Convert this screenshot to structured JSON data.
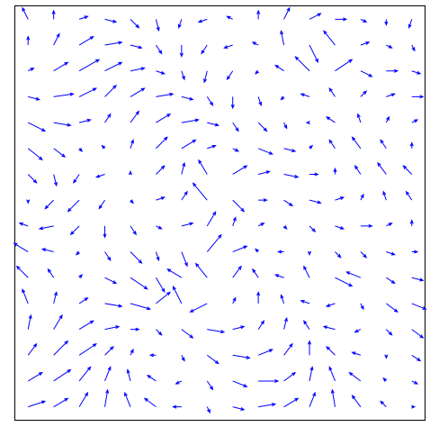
{
  "chart_data": {
    "type": "quiver",
    "color": "#0000ff",
    "x": [
      0,
      1,
      2,
      3,
      4,
      5,
      6,
      7,
      8,
      9,
      10,
      11,
      12,
      13,
      14,
      15
    ],
    "y": [
      0,
      1,
      2,
      3,
      4,
      5,
      6,
      7,
      8,
      9,
      10,
      11,
      12,
      13,
      14,
      15
    ],
    "xlim": [
      -0.5,
      15.5
    ],
    "ylim": [
      -0.5,
      15.5
    ],
    "u": [
      [
        0.6,
        0.5,
        0.3,
        0.1,
        -0.2,
        -0.4,
        -0.3,
        0.1,
        0.4,
        0.6,
        0.5,
        0.2,
        -0.1,
        -0.3,
        -0.2,
        0.1
      ],
      [
        0.5,
        0.6,
        0.4,
        0.2,
        -0.1,
        -0.3,
        -0.2,
        0.2,
        0.5,
        0.7,
        0.4,
        0.1,
        -0.2,
        -0.4,
        -0.1,
        0.2
      ],
      [
        0.3,
        0.5,
        0.6,
        0.3,
        0.1,
        -0.2,
        0.1,
        0.4,
        0.6,
        0.5,
        0.3,
        0.0,
        -0.3,
        -0.3,
        0.0,
        0.3
      ],
      [
        0.1,
        0.3,
        0.5,
        0.5,
        0.3,
        0.2,
        0.4,
        0.6,
        0.4,
        0.2,
        0.1,
        -0.2,
        -0.4,
        -0.2,
        0.2,
        0.4
      ],
      [
        -0.2,
        0.1,
        0.3,
        0.6,
        0.7,
        0.5,
        -0.3,
        -0.6,
        0.1,
        0.0,
        -0.1,
        -0.3,
        -0.3,
        0.1,
        0.4,
        0.5
      ],
      [
        -0.4,
        -0.2,
        0.1,
        0.4,
        0.6,
        0.3,
        -0.5,
        -0.4,
        0.3,
        -0.2,
        -0.3,
        -0.2,
        0.6,
        -0.5,
        0.3,
        0.4
      ],
      [
        -0.5,
        -0.4,
        -0.1,
        0.2,
        0.4,
        0.1,
        0.2,
        0.5,
        0.5,
        -0.1,
        -0.2,
        0.0,
        0.2,
        0.2,
        0.3,
        0.2
      ],
      [
        -0.3,
        -0.5,
        -0.3,
        0.0,
        0.2,
        0.2,
        0.4,
        0.3,
        0.1,
        0.2,
        0.1,
        0.2,
        0.3,
        0.4,
        0.2,
        0.0
      ],
      [
        0.0,
        -0.3,
        -0.4,
        -0.2,
        0.1,
        0.3,
        0.2,
        -0.5,
        0.4,
        0.3,
        0.3,
        0.4,
        0.3,
        0.1,
        -0.1,
        -0.2
      ],
      [
        0.3,
        0.1,
        -0.2,
        -0.3,
        0.0,
        0.3,
        0.1,
        -0.3,
        0.5,
        0.4,
        0.5,
        0.3,
        0.0,
        -0.2,
        -0.3,
        -0.3
      ],
      [
        0.5,
        0.4,
        0.1,
        -0.1,
        0.1,
        0.4,
        0.5,
        0.3,
        0.2,
        0.5,
        0.4,
        0.1,
        -0.2,
        -0.3,
        -0.2,
        0.0
      ],
      [
        0.6,
        0.6,
        0.4,
        0.2,
        0.3,
        0.5,
        0.6,
        0.4,
        0.2,
        0.3,
        0.1,
        -0.1,
        -0.3,
        -0.1,
        0.1,
        0.2
      ],
      [
        0.4,
        0.7,
        0.6,
        0.4,
        0.5,
        0.6,
        0.4,
        0.2,
        0.0,
        0.1,
        -0.1,
        -0.3,
        -0.2,
        0.2,
        0.3,
        0.4
      ],
      [
        0.2,
        0.5,
        0.7,
        0.6,
        0.5,
        0.3,
        0.1,
        -0.1,
        -0.2,
        -0.1,
        -0.3,
        -0.5,
        0.6,
        0.4,
        0.4,
        0.3
      ],
      [
        0.0,
        0.2,
        0.5,
        0.6,
        0.4,
        0.2,
        0.0,
        -0.2,
        -0.3,
        -0.2,
        -0.1,
        0.3,
        -0.4,
        0.3,
        0.2,
        0.1
      ],
      [
        -0.2,
        0.0,
        0.3,
        0.4,
        0.3,
        0.1,
        -0.1,
        -0.3,
        -0.2,
        0.0,
        0.2,
        0.4,
        0.4,
        0.2,
        0.0,
        -0.1
      ]
    ],
    "v": [
      [
        0.2,
        0.3,
        0.5,
        0.6,
        0.5,
        0.3,
        0.0,
        -0.2,
        -0.1,
        0.1,
        0.3,
        0.5,
        0.6,
        0.4,
        0.2,
        0.0
      ],
      [
        0.3,
        0.4,
        0.5,
        0.5,
        0.4,
        0.2,
        -0.1,
        -0.3,
        -0.2,
        0.0,
        0.3,
        0.5,
        0.5,
        0.3,
        0.1,
        -0.1
      ],
      [
        0.4,
        0.5,
        0.4,
        0.3,
        0.2,
        0.0,
        -0.2,
        -0.3,
        -0.1,
        0.2,
        0.4,
        0.5,
        0.3,
        0.1,
        -0.1,
        -0.2
      ],
      [
        0.5,
        0.5,
        0.3,
        0.1,
        0.0,
        -0.2,
        -0.3,
        -0.1,
        0.1,
        0.3,
        0.4,
        0.3,
        0.1,
        -0.1,
        -0.2,
        -0.3
      ],
      [
        0.5,
        0.4,
        0.2,
        -0.1,
        -0.2,
        0.4,
        0.6,
        -0.3,
        0.2,
        0.4,
        0.3,
        0.1,
        -0.1,
        -0.2,
        -0.3,
        -0.2
      ],
      [
        0.4,
        0.3,
        0.1,
        -0.2,
        -0.4,
        -0.5,
        0.3,
        0.5,
        0.4,
        0.3,
        0.1,
        0.4,
        -0.3,
        0.2,
        -0.2,
        -0.1
      ],
      [
        0.3,
        0.1,
        -0.1,
        -0.3,
        -0.4,
        -0.3,
        -0.5,
        0.6,
        0.2,
        0.1,
        0.0,
        -0.1,
        -0.2,
        -0.2,
        -0.1,
        0.0
      ],
      [
        0.1,
        -0.1,
        -0.3,
        -0.4,
        -0.3,
        -0.1,
        0.1,
        0.5,
        0.3,
        0.1,
        -0.1,
        -0.2,
        -0.1,
        0.0,
        0.1,
        0.2
      ],
      [
        -0.1,
        -0.3,
        -0.4,
        -0.3,
        -0.1,
        0.1,
        0.3,
        0.6,
        -0.4,
        0.0,
        -0.2,
        -0.1,
        0.1,
        0.2,
        0.3,
        0.3
      ],
      [
        -0.3,
        -0.4,
        -0.3,
        -0.1,
        0.1,
        0.3,
        0.4,
        0.5,
        0.3,
        0.1,
        -0.1,
        0.0,
        0.2,
        0.3,
        0.4,
        0.3
      ],
      [
        -0.4,
        -0.3,
        -0.1,
        0.1,
        0.3,
        0.4,
        0.3,
        0.1,
        -0.1,
        -0.2,
        -0.1,
        0.1,
        0.3,
        0.4,
        0.3,
        0.2
      ],
      [
        -0.3,
        -0.1,
        0.1,
        0.3,
        0.4,
        0.3,
        0.1,
        -0.1,
        -0.3,
        -0.3,
        -0.2,
        0.0,
        0.2,
        0.3,
        0.2,
        0.1
      ],
      [
        -0.1,
        0.1,
        0.3,
        0.4,
        0.3,
        0.1,
        -0.1,
        -0.3,
        -0.4,
        -0.3,
        -0.1,
        0.1,
        0.3,
        0.2,
        0.1,
        0.0
      ],
      [
        0.1,
        0.3,
        0.4,
        0.3,
        0.1,
        -0.1,
        -0.3,
        -0.4,
        -0.3,
        -0.1,
        0.2,
        0.5,
        0.4,
        -0.2,
        0.0,
        -0.1
      ],
      [
        0.3,
        0.4,
        0.3,
        0.1,
        -0.1,
        -0.3,
        -0.4,
        -0.3,
        -0.1,
        0.1,
        0.5,
        -0.6,
        0.5,
        0.1,
        -0.1,
        -0.2
      ],
      [
        0.4,
        0.3,
        0.1,
        -0.1,
        -0.3,
        -0.4,
        -0.3,
        -0.1,
        0.1,
        0.3,
        0.4,
        0.2,
        0.0,
        -0.1,
        -0.2,
        -0.3
      ]
    ]
  }
}
